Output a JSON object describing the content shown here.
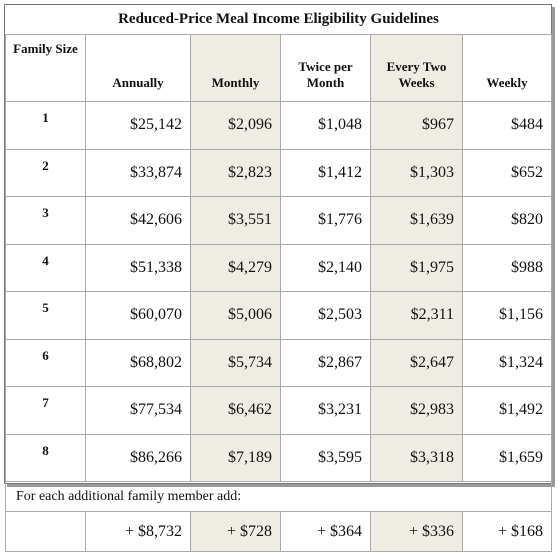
{
  "title": "Reduced-Price Meal Income Eligibility Guidelines",
  "headers": [
    "Family Size",
    "Annually",
    "Monthly",
    "Twice per Month",
    "Every Two Weeks",
    "Weekly"
  ],
  "rows": [
    [
      "1",
      "$25,142",
      "$2,096",
      "$1,048",
      "$967",
      "$484"
    ],
    [
      "2",
      "$33,874",
      "$2,823",
      "$1,412",
      "$1,303",
      "$652"
    ],
    [
      "3",
      "$42,606",
      "$3,551",
      "$1,776",
      "$1,639",
      "$820"
    ],
    [
      "4",
      "$51,338",
      "$4,279",
      "$2,140",
      "$1,975",
      "$988"
    ],
    [
      "5",
      "$60,070",
      "$5,006",
      "$2,503",
      "$2,311",
      "$1,156"
    ],
    [
      "6",
      "$68,802",
      "$5,734",
      "$2,867",
      "$2,647",
      "$1,324"
    ],
    [
      "7",
      "$77,534",
      "$6,462",
      "$3,231",
      "$2,983",
      "$1,492"
    ],
    [
      "8",
      "$86,266",
      "$7,189",
      "$3,595",
      "$3,318",
      "$1,659"
    ]
  ],
  "additional_note": "For each additional family member add:",
  "additional_values": [
    "+ $8,732",
    "+ $728",
    "+ $364",
    "+ $336",
    "+ $168"
  ]
}
